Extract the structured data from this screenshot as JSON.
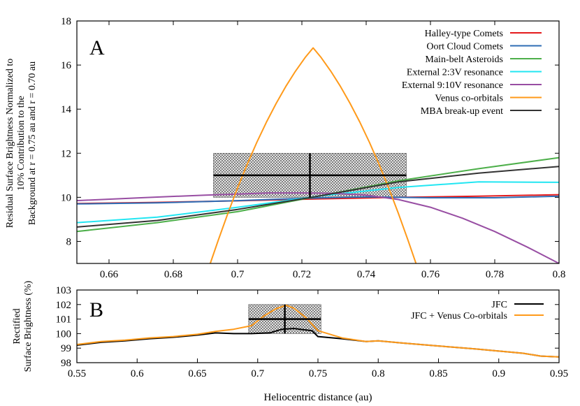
{
  "chart_data": [
    {
      "type": "line",
      "panel_label": "A",
      "ylabel_lines": [
        "Residual Surface Brightness Normalized to",
        "10% Contribution to the",
        "Background at r = 0.75 au and r = 0.70 au"
      ],
      "xlabel": "",
      "xlim": [
        0.65,
        0.8
      ],
      "ylim": [
        7,
        18
      ],
      "xticks": [
        0.66,
        0.68,
        0.7,
        0.72,
        0.74,
        0.76,
        0.78,
        0.8
      ],
      "xtick_labels": [
        "0.66",
        "0.68",
        "0.7",
        "0.72",
        "0.74",
        "0.76",
        "0.78",
        "0.8"
      ],
      "yticks": [
        8,
        10,
        12,
        14,
        16,
        18
      ],
      "ytick_labels": [
        "8",
        "10",
        "12",
        "14",
        "16",
        "18"
      ],
      "legend_position": "top-right",
      "series": [
        {
          "name": "Halley-type Comets",
          "color": "#e41a1c",
          "x": [
            0.65,
            0.675,
            0.7,
            0.725,
            0.75,
            0.775,
            0.8
          ],
          "y": [
            9.72,
            9.77,
            9.84,
            9.93,
            10.0,
            10.05,
            10.12
          ]
        },
        {
          "name": "Oort Cloud Comets",
          "color": "#2f6db5",
          "x": [
            0.65,
            0.675,
            0.7,
            0.72,
            0.74,
            0.76,
            0.78,
            0.8
          ],
          "y": [
            9.7,
            9.75,
            9.85,
            9.95,
            10.02,
            9.98,
            9.98,
            10.05
          ]
        },
        {
          "name": "Main-belt Asteroids",
          "color": "#4daf4a",
          "x": [
            0.65,
            0.675,
            0.7,
            0.725,
            0.75,
            0.775,
            0.8
          ],
          "y": [
            8.45,
            8.85,
            9.35,
            10.05,
            10.75,
            11.3,
            11.8
          ]
        },
        {
          "name": "External 2:3V resonance",
          "color": "#22e6f2",
          "x": [
            0.65,
            0.675,
            0.7,
            0.725,
            0.75,
            0.775,
            0.8
          ],
          "y": [
            8.85,
            9.1,
            9.55,
            10.05,
            10.45,
            10.7,
            10.68
          ]
        },
        {
          "name": "External 9:10V resonance",
          "color": "#984ea3",
          "x": [
            0.65,
            0.67,
            0.69,
            0.71,
            0.72,
            0.73,
            0.74,
            0.75,
            0.76,
            0.77,
            0.78,
            0.79,
            0.8
          ],
          "y": [
            9.85,
            9.98,
            10.1,
            10.2,
            10.2,
            10.18,
            10.1,
            9.9,
            9.55,
            9.05,
            8.45,
            7.75,
            7.0
          ]
        },
        {
          "name": "Venus co-orbitals",
          "color": "#ff9a1a",
          "x": [
            0.6915,
            0.694,
            0.697,
            0.7,
            0.703,
            0.706,
            0.709,
            0.712,
            0.715,
            0.718,
            0.721,
            0.7235,
            0.726,
            0.729,
            0.732,
            0.735,
            0.738,
            0.741,
            0.744,
            0.747,
            0.75,
            0.753,
            0.7555
          ],
          "y": [
            7.0,
            8.06,
            9.28,
            10.43,
            11.5,
            12.5,
            13.42,
            14.26,
            15.03,
            15.72,
            16.34,
            16.78,
            16.34,
            15.72,
            15.03,
            14.26,
            13.42,
            12.5,
            11.5,
            10.43,
            9.28,
            8.06,
            7.0
          ]
        },
        {
          "name": "MBA break-up event",
          "color": "#333333",
          "x": [
            0.65,
            0.675,
            0.7,
            0.725,
            0.75,
            0.775,
            0.8
          ],
          "y": [
            8.65,
            8.95,
            9.45,
            10.05,
            10.7,
            11.1,
            11.4
          ]
        }
      ],
      "measurement": {
        "x": 0.7225,
        "xerr_low": 0.6925,
        "xerr_high": 0.7525,
        "y": 11.0,
        "yerr_low": 10.0,
        "yerr_high": 12.0
      }
    },
    {
      "type": "line",
      "panel_label": "B",
      "ylabel_lines": [
        "Rectified",
        "Surface Brightness (%)"
      ],
      "xlabel": "Heliocentric distance (au)",
      "xlim": [
        0.55,
        0.95
      ],
      "ylim": [
        98,
        103
      ],
      "xticks": [
        0.55,
        0.6,
        0.65,
        0.7,
        0.75,
        0.8,
        0.85,
        0.9,
        0.95
      ],
      "xtick_labels": [
        "0.55",
        "0.6",
        "0.65",
        "0.7",
        "0.75",
        "0.8",
        "0.85",
        "0.9",
        "0.95"
      ],
      "yticks": [
        98,
        99,
        100,
        101,
        102,
        103
      ],
      "ytick_labels": [
        "98",
        "99",
        "100",
        "101",
        "102",
        "103"
      ],
      "legend_position": "top-right",
      "series": [
        {
          "name": "JFC",
          "color": "#000000",
          "x": [
            0.55,
            0.57,
            0.59,
            0.61,
            0.63,
            0.65,
            0.665,
            0.68,
            0.695,
            0.71,
            0.72,
            0.73,
            0.745,
            0.75,
            0.77,
            0.79,
            0.8,
            0.82,
            0.85,
            0.88,
            0.9,
            0.92,
            0.935,
            0.95
          ],
          "y": [
            99.2,
            99.4,
            99.5,
            99.65,
            99.75,
            99.9,
            100.05,
            100.0,
            100.0,
            100.05,
            100.3,
            100.35,
            100.2,
            99.8,
            99.65,
            99.45,
            99.5,
            99.35,
            99.15,
            98.95,
            98.8,
            98.65,
            98.45,
            98.4
          ]
        },
        {
          "name": "JFC + Venus Co-orbitals",
          "color": "#ff9a1a",
          "x": [
            0.55,
            0.57,
            0.59,
            0.61,
            0.63,
            0.65,
            0.665,
            0.68,
            0.695,
            0.705,
            0.715,
            0.7235,
            0.73,
            0.74,
            0.75,
            0.77,
            0.79,
            0.8,
            0.82,
            0.85,
            0.88,
            0.9,
            0.92,
            0.935,
            0.95
          ],
          "y": [
            99.25,
            99.45,
            99.55,
            99.7,
            99.8,
            99.95,
            100.15,
            100.3,
            100.55,
            101.2,
            101.7,
            101.95,
            101.75,
            101.1,
            100.2,
            99.7,
            99.45,
            99.5,
            99.35,
            99.15,
            98.95,
            98.8,
            98.65,
            98.45,
            98.4
          ]
        }
      ],
      "measurement": {
        "x": 0.7225,
        "xerr_low": 0.6925,
        "xerr_high": 0.7525,
        "y": 101.0,
        "yerr_low": 100.0,
        "yerr_high": 102.0
      }
    }
  ]
}
